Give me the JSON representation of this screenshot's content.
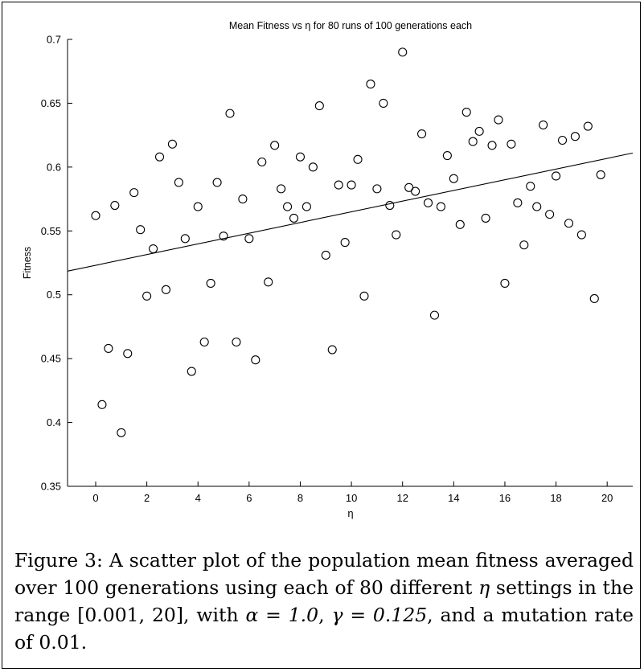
{
  "chart_data": {
    "type": "scatter",
    "title": "Mean Fitness vs η for 80 runs of 100 generations each",
    "xlabel": "η",
    "ylabel": "Fitness",
    "xlim": [
      -1.1,
      21
    ],
    "ylim": [
      0.35,
      0.7
    ],
    "x_ticks": [
      0,
      2,
      4,
      6,
      8,
      10,
      12,
      14,
      16,
      18,
      20
    ],
    "x_tick_labels": [
      "0",
      "2",
      "4",
      "6",
      "8",
      "10",
      "12",
      "14",
      "16",
      "18",
      "20"
    ],
    "y_ticks": [
      0.35,
      0.4,
      0.45,
      0.5,
      0.55,
      0.6,
      0.65,
      0.7
    ],
    "y_tick_labels": [
      "0.35",
      "0.4",
      "0.45",
      "0.5",
      "0.55",
      "0.6",
      "0.65",
      "0.7"
    ],
    "grid": false,
    "marker": "open-circle",
    "points": [
      [
        0.0,
        0.562
      ],
      [
        0.25,
        0.414
      ],
      [
        0.5,
        0.458
      ],
      [
        0.75,
        0.57
      ],
      [
        1.0,
        0.392
      ],
      [
        1.25,
        0.454
      ],
      [
        1.5,
        0.58
      ],
      [
        1.75,
        0.551
      ],
      [
        2.0,
        0.499
      ],
      [
        2.25,
        0.536
      ],
      [
        2.5,
        0.608
      ],
      [
        2.75,
        0.504
      ],
      [
        3.0,
        0.618
      ],
      [
        3.25,
        0.588
      ],
      [
        3.5,
        0.544
      ],
      [
        3.75,
        0.44
      ],
      [
        4.0,
        0.569
      ],
      [
        4.25,
        0.463
      ],
      [
        4.5,
        0.509
      ],
      [
        4.75,
        0.588
      ],
      [
        5.0,
        0.546
      ],
      [
        5.25,
        0.642
      ],
      [
        5.5,
        0.463
      ],
      [
        5.75,
        0.575
      ],
      [
        6.0,
        0.544
      ],
      [
        6.25,
        0.449
      ],
      [
        6.5,
        0.604
      ],
      [
        6.75,
        0.51
      ],
      [
        7.0,
        0.617
      ],
      [
        7.25,
        0.583
      ],
      [
        7.5,
        0.569
      ],
      [
        7.75,
        0.56
      ],
      [
        8.0,
        0.608
      ],
      [
        8.25,
        0.569
      ],
      [
        8.5,
        0.6
      ],
      [
        8.75,
        0.648
      ],
      [
        9.0,
        0.531
      ],
      [
        9.25,
        0.457
      ],
      [
        9.5,
        0.586
      ],
      [
        9.75,
        0.541
      ],
      [
        10.0,
        0.586
      ],
      [
        10.25,
        0.606
      ],
      [
        10.5,
        0.499
      ],
      [
        10.75,
        0.665
      ],
      [
        11.0,
        0.583
      ],
      [
        11.25,
        0.65
      ],
      [
        11.5,
        0.57
      ],
      [
        11.75,
        0.547
      ],
      [
        12.0,
        0.69
      ],
      [
        12.25,
        0.584
      ],
      [
        12.5,
        0.581
      ],
      [
        12.75,
        0.626
      ],
      [
        13.0,
        0.572
      ],
      [
        13.25,
        0.484
      ],
      [
        13.5,
        0.569
      ],
      [
        13.75,
        0.609
      ],
      [
        14.0,
        0.591
      ],
      [
        14.25,
        0.555
      ],
      [
        14.5,
        0.643
      ],
      [
        14.75,
        0.62
      ],
      [
        15.0,
        0.628
      ],
      [
        15.25,
        0.56
      ],
      [
        15.5,
        0.617
      ],
      [
        15.75,
        0.637
      ],
      [
        16.0,
        0.509
      ],
      [
        16.25,
        0.618
      ],
      [
        16.5,
        0.572
      ],
      [
        16.75,
        0.539
      ],
      [
        17.0,
        0.585
      ],
      [
        17.25,
        0.569
      ],
      [
        17.5,
        0.633
      ],
      [
        17.75,
        0.563
      ],
      [
        18.0,
        0.593
      ],
      [
        18.25,
        0.621
      ],
      [
        18.5,
        0.556
      ],
      [
        18.75,
        0.624
      ],
      [
        19.0,
        0.547
      ],
      [
        19.25,
        0.632
      ],
      [
        19.5,
        0.497
      ],
      [
        19.75,
        0.594
      ]
    ],
    "trend_line": {
      "x": [
        -1.1,
        21
      ],
      "y": [
        0.5185,
        0.611
      ]
    }
  },
  "caption": {
    "text_1": "Figure 3: A scatter plot of the population mean fitness averaged over 100 generations using each of 80 different ",
    "eta": "η",
    "text_2": " settings in the range [0.001, 20], with ",
    "alpha_eq": "α = 1.0",
    "sep_1": ", ",
    "gamma_eq": "γ = 0.125",
    "text_3": ", and a mutation rate of 0.01."
  }
}
